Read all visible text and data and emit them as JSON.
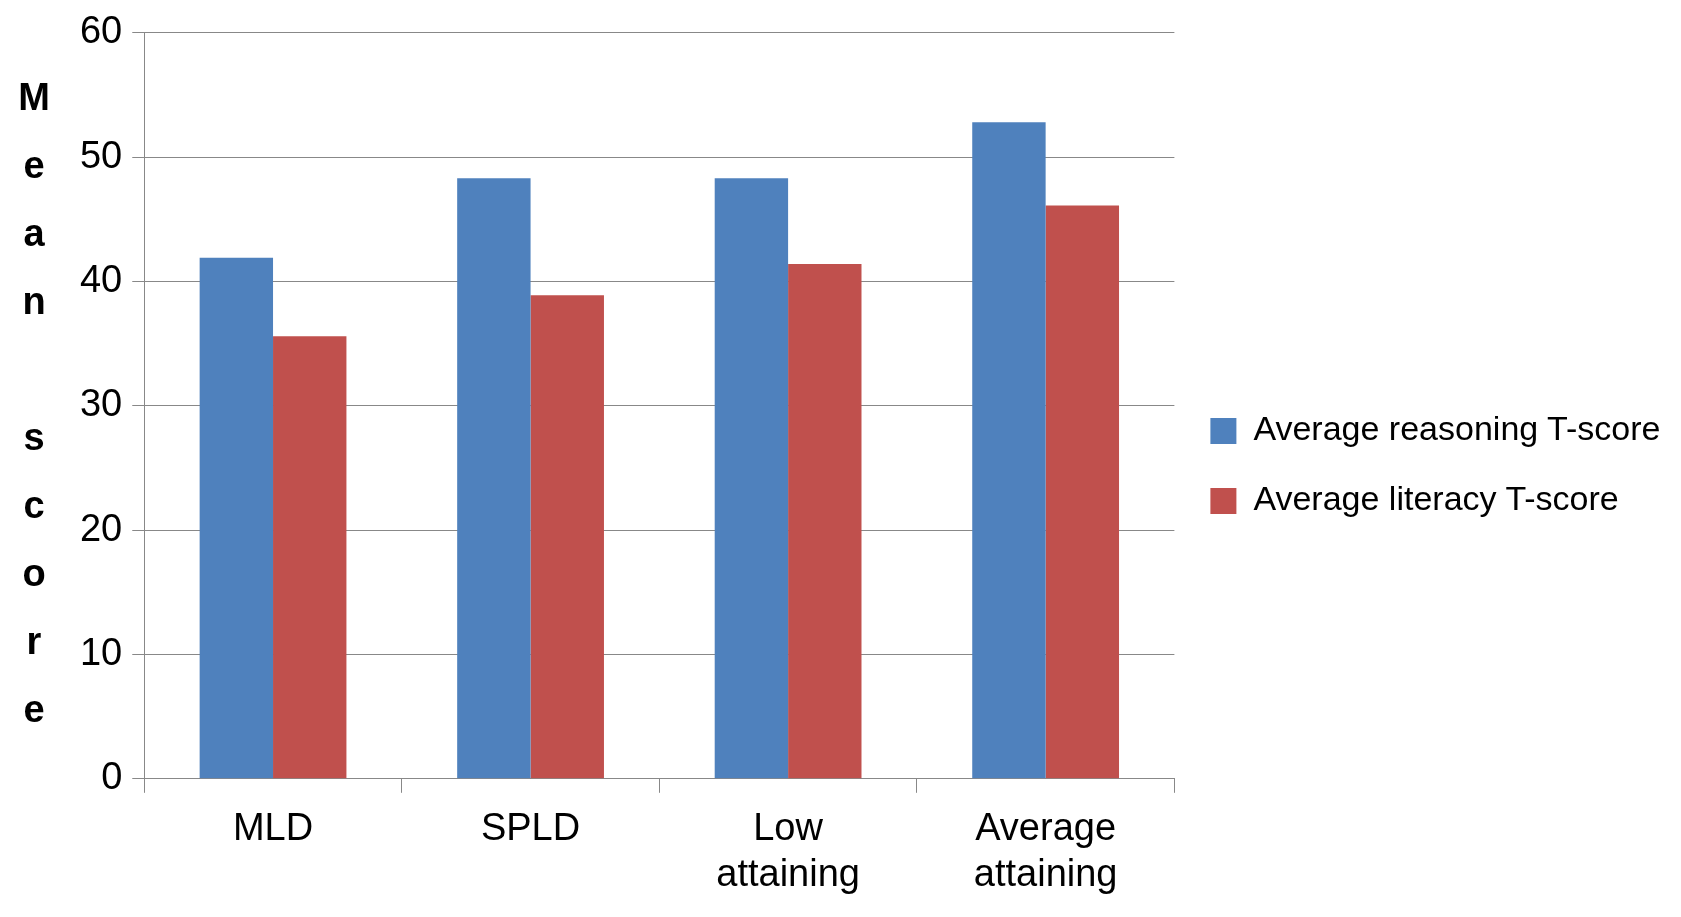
{
  "chart_data": {
    "type": "bar",
    "ylabel": "Mean score",
    "categories": [
      "MLD",
      "SPLD",
      "Low attaining",
      "Average attaining"
    ],
    "series": [
      {
        "name": "Average reasoning T-score",
        "color": "#4f81bd",
        "values": [
          41.9,
          48.3,
          48.3,
          52.8
        ]
      },
      {
        "name": "Average literacy T-score",
        "color": "#c0504d",
        "values": [
          35.6,
          38.9,
          41.4,
          46.1
        ]
      }
    ],
    "ylim": [
      0,
      60
    ],
    "yticks": [
      0,
      10,
      20,
      30,
      40,
      50,
      60
    ],
    "grid": "y",
    "legend": "right"
  }
}
